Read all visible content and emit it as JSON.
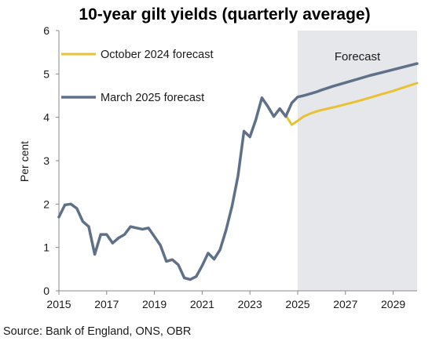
{
  "chart_data": {
    "type": "line",
    "title": "10-year gilt yields (quarterly average)",
    "ylabel": "Per cent",
    "xlabel": "",
    "xlim": [
      2015,
      2030
    ],
    "ylim": [
      0,
      6
    ],
    "yticks": [
      0,
      1,
      2,
      3,
      4,
      5,
      6
    ],
    "xticks": [
      2015,
      2017,
      2019,
      2021,
      2023,
      2025,
      2027,
      2029
    ],
    "grid": false,
    "legend_placement": "top-left",
    "forecast_shading": {
      "label": "Forecast",
      "start": 2025.0,
      "end": 2030.0,
      "color": "#e6e7eb"
    },
    "source": "Source: Bank of England, ONS, OBR",
    "series": [
      {
        "name": "October 2024 forecast",
        "color": "#e8c233",
        "x": [
          2024.5,
          2024.75,
          2025.0,
          2025.25,
          2025.5,
          2025.75,
          2026.0,
          2026.5,
          2027.0,
          2027.5,
          2028.0,
          2028.5,
          2029.0,
          2029.5,
          2030.0
        ],
        "values": [
          4.05,
          3.83,
          3.92,
          4.02,
          4.08,
          4.13,
          4.17,
          4.23,
          4.3,
          4.37,
          4.45,
          4.53,
          4.61,
          4.7,
          4.79
        ]
      },
      {
        "name": "March 2025 forecast",
        "color": "#5f7088",
        "x": [
          2015.0,
          2015.25,
          2015.5,
          2015.75,
          2016.0,
          2016.25,
          2016.5,
          2016.75,
          2017.0,
          2017.25,
          2017.5,
          2017.75,
          2018.0,
          2018.25,
          2018.5,
          2018.75,
          2019.0,
          2019.25,
          2019.5,
          2019.75,
          2020.0,
          2020.25,
          2020.5,
          2020.75,
          2021.0,
          2021.25,
          2021.5,
          2021.75,
          2022.0,
          2022.25,
          2022.5,
          2022.75,
          2023.0,
          2023.25,
          2023.5,
          2023.75,
          2024.0,
          2024.25,
          2024.5,
          2024.75,
          2025.0,
          2025.25,
          2025.5,
          2025.75,
          2026.0,
          2026.5,
          2027.0,
          2027.5,
          2028.0,
          2028.5,
          2029.0,
          2029.5,
          2030.0
        ],
        "values": [
          1.7,
          1.98,
          2.0,
          1.9,
          1.6,
          1.48,
          0.84,
          1.3,
          1.3,
          1.1,
          1.22,
          1.3,
          1.48,
          1.45,
          1.42,
          1.45,
          1.25,
          1.05,
          0.68,
          0.72,
          0.6,
          0.3,
          0.26,
          0.33,
          0.58,
          0.87,
          0.73,
          0.95,
          1.4,
          1.95,
          2.65,
          3.68,
          3.55,
          3.95,
          4.45,
          4.25,
          4.02,
          4.2,
          4.02,
          4.33,
          4.47,
          4.5,
          4.54,
          4.58,
          4.63,
          4.72,
          4.8,
          4.88,
          4.96,
          5.03,
          5.1,
          5.17,
          5.24
        ]
      }
    ]
  }
}
